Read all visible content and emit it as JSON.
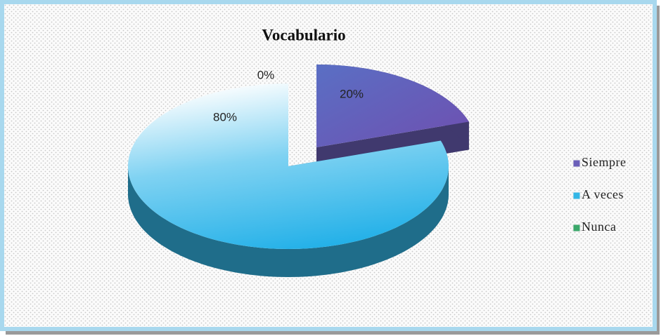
{
  "chart_data": {
    "type": "pie",
    "title": "Vocabulario",
    "categories": [
      "Siempre",
      "A veces",
      "Nunca"
    ],
    "values": [
      20,
      80,
      0
    ],
    "value_labels": [
      "20%",
      "80%",
      "0%"
    ],
    "colors": [
      "#6a5fb8",
      "#33b6e6",
      "#3aa86a"
    ],
    "legend": "right"
  }
}
